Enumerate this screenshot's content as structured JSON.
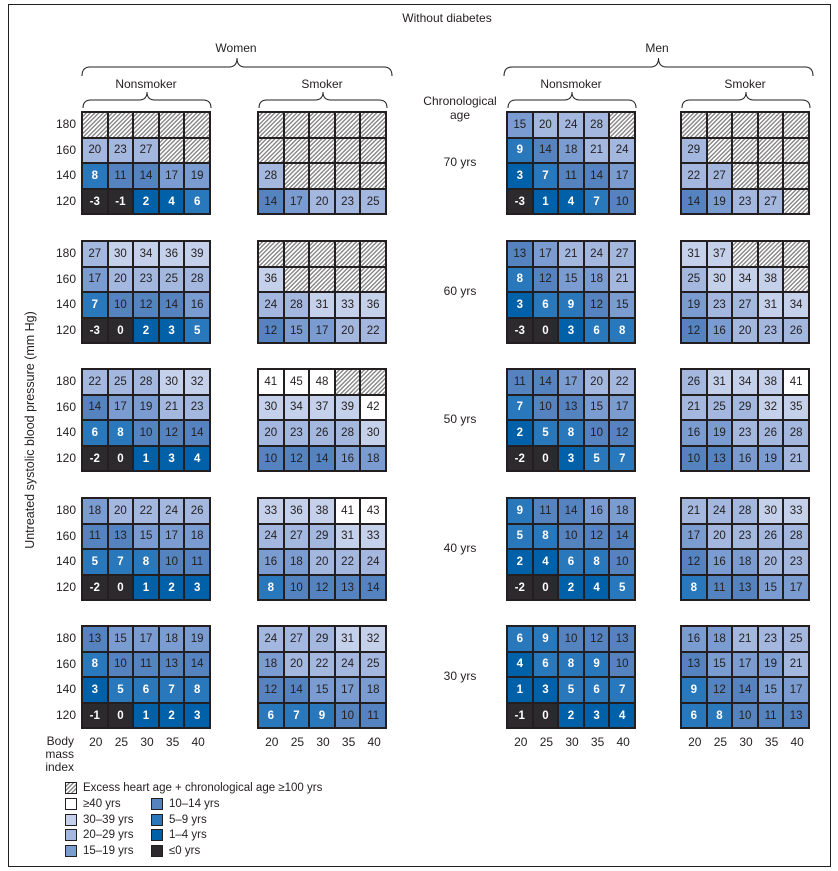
{
  "chart_data": {
    "type": "heatmap",
    "title": "Without diabetes",
    "ylabel": "Untreated systolic blood pressure (mm Hg)",
    "xlabel": "Body mass index",
    "age_header": "Chronological age",
    "sexes": [
      "Women",
      "Men"
    ],
    "smoking_groups": [
      "Nonsmoker",
      "Smoker"
    ],
    "x_categories": [
      "20",
      "25",
      "30",
      "35",
      "40"
    ],
    "y_categories": [
      "180",
      "160",
      "140",
      "120"
    ],
    "ages": [
      "70 yrs",
      "60 yrs",
      "50 yrs",
      "40 yrs",
      "30 yrs"
    ],
    "hatched_note": "null = excess heart age + chronological age ≥100 yrs",
    "panels": [
      {
        "age": "70 yrs",
        "values": [
          [
            [
              null,
              null,
              null,
              null,
              null
            ],
            [
              20,
              23,
              27,
              null,
              null
            ],
            [
              8,
              11,
              14,
              17,
              19
            ],
            [
              -3,
              -1,
              2,
              4,
              6
            ]
          ],
          [
            [
              null,
              null,
              null,
              null,
              null
            ],
            [
              null,
              null,
              null,
              null,
              null
            ],
            [
              28,
              null,
              null,
              null,
              null
            ],
            [
              14,
              17,
              20,
              23,
              25
            ]
          ],
          [
            [
              15,
              20,
              24,
              28,
              null
            ],
            [
              9,
              14,
              18,
              21,
              24
            ],
            [
              3,
              7,
              11,
              14,
              17
            ],
            [
              -3,
              1,
              4,
              7,
              10
            ]
          ],
          [
            [
              null,
              null,
              null,
              null,
              null
            ],
            [
              29,
              null,
              null,
              null,
              null
            ],
            [
              22,
              27,
              null,
              null,
              null
            ],
            [
              14,
              19,
              23,
              27,
              null
            ]
          ]
        ]
      },
      {
        "age": "60 yrs",
        "values": [
          [
            [
              27,
              30,
              34,
              36,
              39
            ],
            [
              17,
              20,
              23,
              25,
              28
            ],
            [
              7,
              10,
              12,
              14,
              16
            ],
            [
              -3,
              0,
              2,
              3,
              5
            ]
          ],
          [
            [
              null,
              null,
              null,
              null,
              null
            ],
            [
              36,
              null,
              null,
              null,
              null
            ],
            [
              24,
              28,
              31,
              33,
              36
            ],
            [
              12,
              15,
              17,
              20,
              22
            ]
          ],
          [
            [
              13,
              17,
              21,
              24,
              27
            ],
            [
              8,
              12,
              15,
              18,
              21
            ],
            [
              3,
              6,
              9,
              12,
              15
            ],
            [
              -3,
              0,
              3,
              6,
              8
            ]
          ],
          [
            [
              31,
              37,
              null,
              null,
              null
            ],
            [
              25,
              30,
              34,
              38,
              null
            ],
            [
              19,
              23,
              27,
              31,
              34
            ],
            [
              12,
              16,
              20,
              23,
              26
            ]
          ]
        ]
      },
      {
        "age": "50 yrs",
        "values": [
          [
            [
              22,
              25,
              28,
              30,
              32
            ],
            [
              14,
              17,
              19,
              21,
              23
            ],
            [
              6,
              8,
              10,
              12,
              14
            ],
            [
              -2,
              0,
              1,
              3,
              4
            ]
          ],
          [
            [
              41,
              45,
              48,
              null,
              null
            ],
            [
              30,
              34,
              37,
              39,
              42
            ],
            [
              20,
              23,
              26,
              28,
              30
            ],
            [
              10,
              12,
              14,
              16,
              18
            ]
          ],
          [
            [
              11,
              14,
              17,
              20,
              22
            ],
            [
              7,
              10,
              13,
              15,
              17
            ],
            [
              2,
              5,
              8,
              10,
              12
            ],
            [
              -2,
              0,
              3,
              5,
              7
            ]
          ],
          [
            [
              26,
              31,
              34,
              38,
              41
            ],
            [
              21,
              25,
              29,
              32,
              35
            ],
            [
              16,
              19,
              23,
              26,
              28
            ],
            [
              10,
              13,
              16,
              19,
              21
            ]
          ]
        ]
      },
      {
        "age": "40 yrs",
        "values": [
          [
            [
              18,
              20,
              22,
              24,
              26
            ],
            [
              11,
              13,
              15,
              17,
              18
            ],
            [
              5,
              7,
              8,
              10,
              11
            ],
            [
              -2,
              0,
              1,
              2,
              3
            ]
          ],
          [
            [
              33,
              36,
              38,
              41,
              43
            ],
            [
              24,
              27,
              29,
              31,
              33
            ],
            [
              16,
              18,
              20,
              22,
              24
            ],
            [
              8,
              10,
              12,
              13,
              14
            ]
          ],
          [
            [
              9,
              11,
              14,
              16,
              18
            ],
            [
              5,
              8,
              10,
              12,
              14
            ],
            [
              2,
              4,
              6,
              8,
              10
            ],
            [
              -2,
              0,
              2,
              4,
              5
            ]
          ],
          [
            [
              21,
              24,
              28,
              30,
              33
            ],
            [
              17,
              20,
              23,
              26,
              28
            ],
            [
              12,
              16,
              18,
              20,
              23
            ],
            [
              8,
              11,
              13,
              15,
              17
            ]
          ]
        ]
      },
      {
        "age": "30 yrs",
        "values": [
          [
            [
              13,
              15,
              17,
              18,
              19
            ],
            [
              8,
              10,
              11,
              13,
              14
            ],
            [
              3,
              5,
              6,
              7,
              8
            ],
            [
              -1,
              0,
              1,
              2,
              3
            ]
          ],
          [
            [
              24,
              27,
              29,
              31,
              32
            ],
            [
              18,
              20,
              22,
              24,
              25
            ],
            [
              12,
              14,
              15,
              17,
              18
            ],
            [
              6,
              7,
              9,
              10,
              11
            ]
          ],
          [
            [
              6,
              9,
              10,
              12,
              13
            ],
            [
              4,
              6,
              8,
              9,
              10
            ],
            [
              1,
              3,
              5,
              6,
              7
            ],
            [
              -1,
              0,
              2,
              3,
              4
            ]
          ],
          [
            [
              16,
              18,
              21,
              23,
              25
            ],
            [
              13,
              15,
              17,
              19,
              21
            ],
            [
              9,
              12,
              14,
              15,
              17
            ],
            [
              6,
              8,
              10,
              11,
              13
            ]
          ]
        ]
      }
    ],
    "legend": {
      "hatched": "Excess heart age + chronological age ≥100 yrs",
      "bins": [
        {
          "label": "≥40 yrs",
          "min": 40,
          "color": "#ffffff"
        },
        {
          "label": "30–39 yrs",
          "min": 30,
          "color": "#c5d1ea"
        },
        {
          "label": "20–29 yrs",
          "min": 20,
          "color": "#a3b7df"
        },
        {
          "label": "15–19 yrs",
          "min": 15,
          "color": "#7b9cd0"
        },
        {
          "label": "10–14 yrs",
          "min": 10,
          "color": "#5583c0"
        },
        {
          "label": "5–9 yrs",
          "min": 5,
          "color": "#2a78bc"
        },
        {
          "label": "1–4 yrs",
          "min": 1,
          "color": "#0060a8"
        },
        {
          "label": "≤0 yrs",
          "min": -999,
          "color": "#2d2a2e"
        }
      ]
    }
  }
}
